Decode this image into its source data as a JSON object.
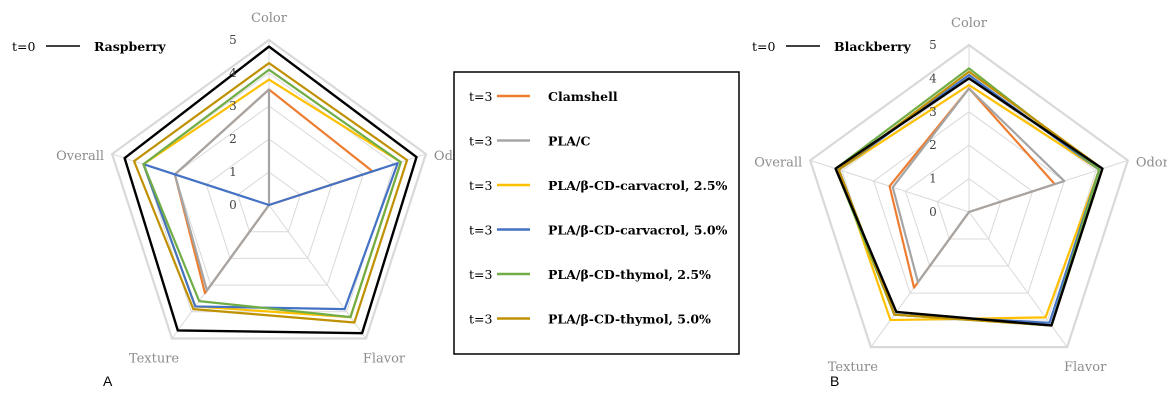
{
  "legend": {
    "items": [
      {
        "time": "t=3",
        "label": "Clamshell",
        "color": "#ED7D31"
      },
      {
        "time": "t=3",
        "label": "PLA/C",
        "color": "#A5A5A5"
      },
      {
        "time": "t=3",
        "label": "PLA/β-CD-carvacrol,  2.5%",
        "color": "#FFC000"
      },
      {
        "time": "t=3",
        "label": "PLA/β-CD-carvacrol,  5.0%",
        "color": "#4472C4"
      },
      {
        "time": "t=3",
        "label": "PLA/β-CD-thymol,  2.5%",
        "color": "#70AD47"
      },
      {
        "time": "t=3",
        "label": "PLA/β-CD-thymol,  5.0%",
        "color": "#BF9000"
      }
    ]
  },
  "chart_data": [
    {
      "type": "radar",
      "panel": "A",
      "title": "Raspberry",
      "baseline": {
        "time": "t=0",
        "color": "#000000",
        "values": [
          4.8,
          4.7,
          4.8,
          4.7,
          4.6
        ]
      },
      "axes": [
        "Color",
        "Odor",
        "Flavor",
        "Texture",
        "Overall"
      ],
      "rlim": [
        0,
        5
      ],
      "ticks": [
        "0",
        "1",
        "2",
        "3",
        "4",
        "5"
      ],
      "series": [
        {
          "name": "Clamshell",
          "color": "#ED7D31",
          "values": [
            3.5,
            3.3,
            0,
            3.3,
            3.0
          ]
        },
        {
          "name": "PLA/C",
          "color": "#A5A5A5",
          "values": [
            3.5,
            0,
            0,
            3.2,
            3.0
          ]
        },
        {
          "name": "PLA/β-CD-carvacrol,  2.5%",
          "color": "#FFC000",
          "values": [
            3.8,
            4.2,
            4.2,
            3.8,
            4.0
          ]
        },
        {
          "name": "PLA/β-CD-carvacrol,  5.0%",
          "color": "#4472C4",
          "values": [
            0,
            4.1,
            3.9,
            3.8,
            4.0
          ]
        },
        {
          "name": "PLA/β-CD-thymol,  2.5%",
          "color": "#70AD47",
          "values": [
            4.1,
            4.2,
            4.2,
            3.6,
            4.0
          ]
        },
        {
          "name": "PLA/β-CD-thymol,  5.0%",
          "color": "#BF9000",
          "values": [
            4.3,
            4.4,
            4.4,
            3.9,
            4.3
          ]
        }
      ]
    },
    {
      "type": "radar",
      "panel": "B",
      "title": "Blackberry",
      "baseline": {
        "time": "t=0",
        "color": "#000000",
        "values": [
          4.0,
          4.2,
          4.2,
          3.7,
          4.2
        ]
      },
      "axes": [
        "Color",
        "Odor",
        "Flavor",
        "Texture",
        "Overall"
      ],
      "rlim": [
        0,
        5
      ],
      "ticks": [
        "0",
        "1",
        "2",
        "3",
        "4",
        "5"
      ],
      "series": [
        {
          "name": "Clamshell",
          "color": "#ED7D31",
          "values": [
            3.7,
            2.7,
            0,
            2.8,
            2.5
          ]
        },
        {
          "name": "PLA/C",
          "color": "#A5A5A5",
          "values": [
            3.7,
            3.0,
            0,
            2.6,
            2.4
          ]
        },
        {
          "name": "PLA/β-CD-carvacrol,  2.5%",
          "color": "#FFC000",
          "values": [
            3.8,
            4.1,
            3.9,
            4.0,
            4.1
          ]
        },
        {
          "name": "PLA/β-CD-carvacrol,  5.0%",
          "color": "#4472C4",
          "values": [
            4.1,
            4.1,
            4.1,
            3.8,
            4.1
          ]
        },
        {
          "name": "PLA/β-CD-thymol,  2.5%",
          "color": "#70AD47",
          "values": [
            4.3,
            4.1,
            4.2,
            3.8,
            4.2
          ]
        },
        {
          "name": "PLA/β-CD-thymol,  5.0%",
          "color": "#BF9000",
          "values": [
            4.2,
            4.2,
            4.2,
            3.8,
            4.1
          ]
        }
      ]
    }
  ]
}
